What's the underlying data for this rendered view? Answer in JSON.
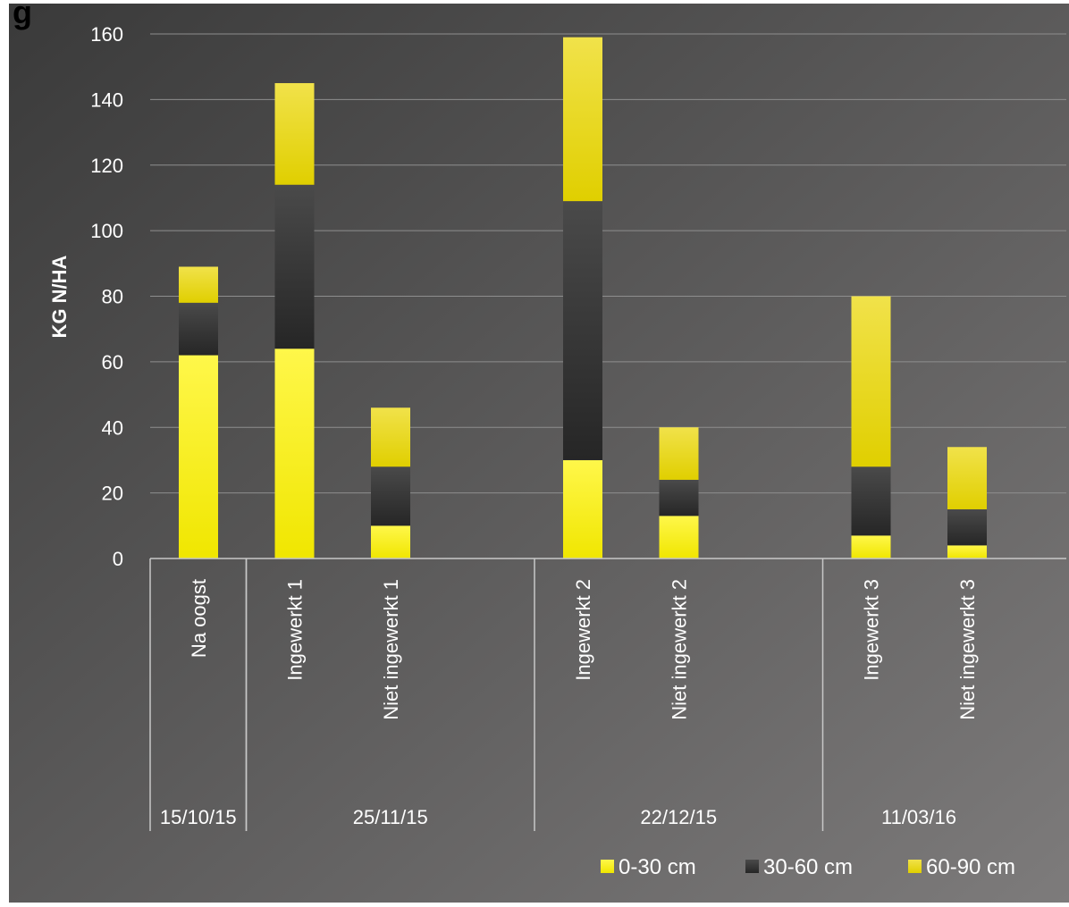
{
  "chart_data": {
    "type": "bar",
    "stacked": true,
    "title": "",
    "ylabel": "KG N/HA",
    "xlabel": "",
    "ylim": [
      0,
      160
    ],
    "yticks": [
      0,
      20,
      40,
      60,
      80,
      100,
      120,
      140,
      160
    ],
    "grid": true,
    "legend_position": "bottom-right",
    "slots": 9,
    "categories": [
      {
        "label": "Na oogst",
        "slot": 0
      },
      {
        "label": "Ingewerkt 1",
        "slot": 1
      },
      {
        "label": "Niet ingewerkt 1",
        "slot": 2
      },
      {
        "label": "Ingewerkt 2",
        "slot": 4
      },
      {
        "label": "Niet ingewerkt 2",
        "slot": 5
      },
      {
        "label": "Ingewerkt 3",
        "slot": 7
      },
      {
        "label": "Niet ingewerkt 3",
        "slot": 8
      }
    ],
    "groups": [
      {
        "label": "15/10/15",
        "from": 0,
        "to": 0
      },
      {
        "label": "25/11/15",
        "from": 1,
        "to": 3
      },
      {
        "label": "22/12/15",
        "from": 4,
        "to": 6
      },
      {
        "label": "11/03/16",
        "from": 7,
        "to": 8
      }
    ],
    "series": [
      {
        "name": "0-30 cm",
        "color": "#f5f000",
        "values": [
          62,
          64,
          10,
          30,
          13,
          7,
          4
        ]
      },
      {
        "name": "30-60 cm",
        "color": "#2f2f2f",
        "values": [
          16,
          50,
          18,
          79,
          11,
          21,
          11
        ]
      },
      {
        "name": "60-90 cm",
        "color": "#e8d800",
        "values": [
          11,
          31,
          18,
          50,
          16,
          52,
          19
        ]
      }
    ],
    "colors": {
      "background_start": "#3a3a3a",
      "background_end": "#7d7b7b",
      "gridline": "#8e8e8e",
      "axis": "#c8c8c8",
      "text": "#ffffff"
    }
  },
  "partial_title": "g"
}
